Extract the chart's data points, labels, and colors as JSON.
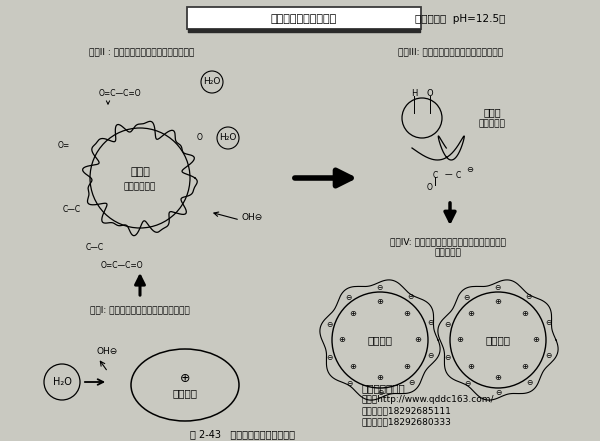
{
  "bg_color": "#c9c9c1",
  "title": "反应性高分子作用机理",
  "subtitle": "（水泥体系  pH=12.5）",
  "step1_label": "步骤I: 水泥颗粒和水反应生成氢氧根离子",
  "step2_label": "步骤II : 氢氧根离子攻击反应性高分子表面",
  "step3_label": "步骤III: 反应性高分子逐渐溶解成为分散剂",
  "step4_label1": "步骤IV: 溶解了的反应性高分子吸附在水泥颗粒",
  "step4_label2": "表面而分散",
  "caption": "图 2-43   反应性高分子的作用机理",
  "company": "青岛鼎昌新材料",
  "website": "网址：http://www.qddc163.com/",
  "phone1": "咨询专线：18292685111",
  "phone2": "订货专线：18292680333"
}
